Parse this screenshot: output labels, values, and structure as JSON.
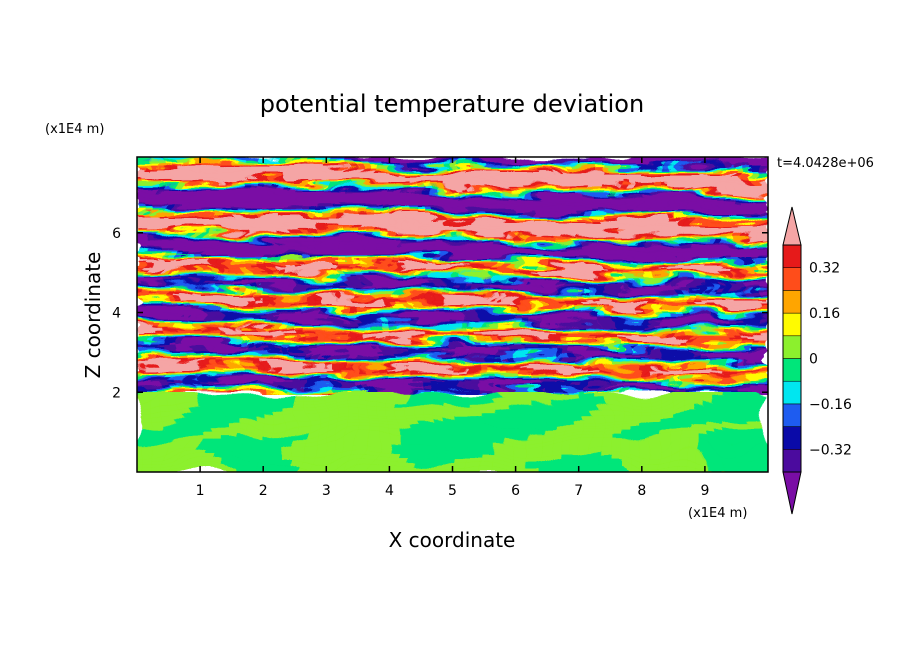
{
  "chart_data": {
    "type": "heatmap",
    "title": "potential temperature deviation",
    "xlabel": "X coordinate",
    "ylabel": "Z coordinate",
    "x_unit": "(x1E4 m)",
    "y_unit": "(x1E4 m)",
    "time_label": "t=4.0428e+06",
    "xlim": [
      0,
      10
    ],
    "ylim": [
      0,
      7.9
    ],
    "x_ticks": [
      1,
      2,
      3,
      4,
      5,
      6,
      7,
      8,
      9
    ],
    "y_ticks": [
      2,
      4,
      6
    ],
    "colorbar": {
      "levels": [
        -0.4,
        -0.32,
        -0.24,
        -0.16,
        -0.08,
        0,
        0.08,
        0.16,
        0.24,
        0.32,
        0.4
      ],
      "tick_labels": [
        "-0.32",
        "-0.16",
        "0",
        "0.16",
        "0.32"
      ],
      "extend": "both",
      "colors": [
        "#7a0da5",
        "#4b0b9e",
        "#0a0aa8",
        "#1e5cf0",
        "#00e6f0",
        "#00e67a",
        "#8cf02d",
        "#fffb00",
        "#ffa500",
        "#ff4d1a",
        "#e61a1a",
        "#f5a5a5"
      ]
    },
    "regions": [
      {
        "z_range": [
          0,
          2
        ],
        "description_values": [
          -0.08,
          0.08
        ]
      },
      {
        "z_range": [
          2,
          5.5
        ],
        "description_values": [
          -0.4,
          0.4
        ]
      },
      {
        "z_range": [
          5.5,
          7.9
        ],
        "description_values": [
          -0.4,
          0.4
        ]
      }
    ]
  }
}
